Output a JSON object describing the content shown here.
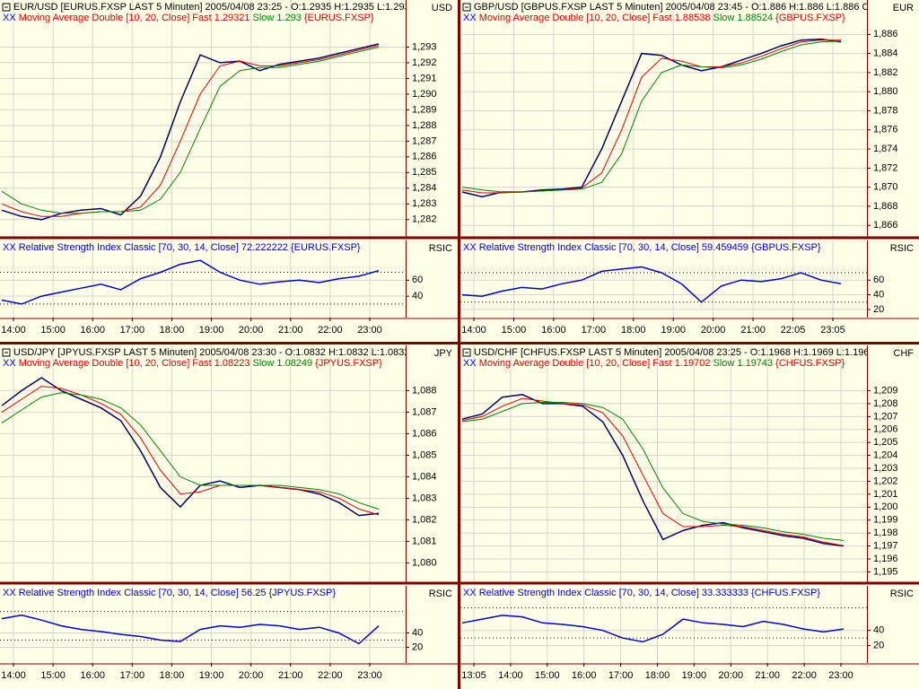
{
  "chart_data": [
    {
      "type": "line",
      "title": "EUR/USD [EURUS.FXSP LAST 5 Minuten] 2005/04/08 23:25 - O:1.2935 H:1.2935 L:1.293",
      "prefix": "XX",
      "indicator": "Moving Average Double [10, 20, Close]",
      "symbol": "{EURUS.FXSP}",
      "axis_label": "USD",
      "ylim": [
        1.2809,
        1.296
      ],
      "yticks": [
        {
          "value": 1.282,
          "label": "1,282"
        },
        {
          "value": 1.283,
          "label": "1,283"
        },
        {
          "value": 1.284,
          "label": "1,284"
        },
        {
          "value": 1.285,
          "label": "1,285"
        },
        {
          "value": 1.286,
          "label": "1,286"
        },
        {
          "value": 1.287,
          "label": "1,287"
        },
        {
          "value": 1.288,
          "label": "1,288"
        },
        {
          "value": 1.289,
          "label": "1,289"
        },
        {
          "value": 1.29,
          "label": "1,290"
        },
        {
          "value": 1.291,
          "label": "1,291"
        },
        {
          "value": 1.292,
          "label": "1,292"
        },
        {
          "value": 1.293,
          "label": "1,293"
        }
      ],
      "series": [
        {
          "color": "#000060",
          "values": [
            1.2826,
            1.2822,
            1.282,
            1.2824,
            1.2826,
            1.2827,
            1.2823,
            1.2835,
            1.286,
            1.2895,
            1.2925,
            1.292,
            1.2921,
            1.2915,
            1.2919,
            1.2921,
            1.2923,
            1.2926,
            1.2929,
            1.2932
          ]
        },
        {
          "name": "Fast 1.29321",
          "color": "#dd0000",
          "values": [
            1.283,
            1.2825,
            1.2822,
            1.2822,
            1.2824,
            1.2825,
            1.2825,
            1.2828,
            1.2842,
            1.287,
            1.29,
            1.2918,
            1.2921,
            1.2918,
            1.2918,
            1.292,
            1.2922,
            1.2925,
            1.2928,
            1.2931
          ]
        },
        {
          "name": "Slow 1.293",
          "color": "#008000",
          "values": [
            1.2838,
            1.283,
            1.2826,
            1.2824,
            1.2824,
            1.2825,
            1.2825,
            1.2826,
            1.2833,
            1.285,
            1.2878,
            1.2905,
            1.2915,
            1.2917,
            1.2917,
            1.2919,
            1.2921,
            1.2924,
            1.2927,
            1.293
          ]
        }
      ]
    },
    {
      "type": "line",
      "prefix": "XX",
      "indicator": "Relative Strength Index Classic [70, 30, 14, Close] 72.222222",
      "symbol": "{EURUS.FXSP}",
      "axis_label": "RSIC",
      "ylim": [
        13,
        110
      ],
      "yticks": [
        40,
        60
      ],
      "levels": [
        70,
        30
      ],
      "xticks": [
        "14:00",
        "15:00",
        "16:00",
        "17:00",
        "18:00",
        "19:00",
        "20:00",
        "21:00",
        "22:00",
        "23:00"
      ],
      "series": [
        {
          "color": "#0000cc",
          "values": [
            35,
            30,
            40,
            45,
            50,
            55,
            48,
            62,
            70,
            80,
            85,
            70,
            60,
            55,
            58,
            60,
            57,
            62,
            65,
            72
          ]
        }
      ]
    },
    {
      "type": "line",
      "title": "GBP/USD [GBPUS.FXSP LAST 5 Minuten] 2005/04/08 23:45 - O:1.886 H:1.886 L:1.886 C",
      "prefix": "XX",
      "indicator": "Moving Average Double [10, 20, Close]",
      "symbol": "{GBPUS.FXSP}",
      "axis_label": "EUR",
      "ylim": [
        1.8648,
        1.8896
      ],
      "yticks": [
        {
          "value": 1.866,
          "label": "1,866"
        },
        {
          "value": 1.868,
          "label": "1,868"
        },
        {
          "value": 1.87,
          "label": "1,870"
        },
        {
          "value": 1.872,
          "label": "1,872"
        },
        {
          "value": 1.874,
          "label": "1,874"
        },
        {
          "value": 1.876,
          "label": "1,876"
        },
        {
          "value": 1.878,
          "label": "1,878"
        },
        {
          "value": 1.88,
          "label": "1,880"
        },
        {
          "value": 1.882,
          "label": "1,882"
        },
        {
          "value": 1.884,
          "label": "1,884"
        },
        {
          "value": 1.886,
          "label": "1,886"
        }
      ],
      "series": [
        {
          "color": "#000060",
          "values": [
            1.8695,
            1.869,
            1.8695,
            1.8695,
            1.8697,
            1.8698,
            1.87,
            1.874,
            1.879,
            1.884,
            1.8838,
            1.8828,
            1.8822,
            1.8826,
            1.8833,
            1.884,
            1.8848,
            1.8854,
            1.8855,
            1.8852
          ]
        },
        {
          "name": "Fast 1.88538",
          "color": "#dd0000",
          "values": [
            1.8697,
            1.8694,
            1.8694,
            1.8695,
            1.8696,
            1.8697,
            1.8699,
            1.8715,
            1.876,
            1.8815,
            1.8835,
            1.8832,
            1.8826,
            1.8826,
            1.883,
            1.8837,
            1.8845,
            1.8852,
            1.8854,
            1.8854
          ]
        },
        {
          "name": "Slow 1.88524",
          "color": "#008000",
          "values": [
            1.87,
            1.8697,
            1.8695,
            1.8695,
            1.8696,
            1.8697,
            1.8698,
            1.8705,
            1.8735,
            1.879,
            1.882,
            1.8828,
            1.8826,
            1.8825,
            1.8828,
            1.8834,
            1.8842,
            1.8849,
            1.8852,
            1.8853
          ]
        }
      ]
    },
    {
      "type": "line",
      "prefix": "XX",
      "indicator": "Relative Strength Index Classic [70, 30, 14, Close] 59.459459",
      "symbol": "{GBPUS.FXSP}",
      "axis_label": "RSIC",
      "ylim": [
        9,
        114
      ],
      "yticks": [
        20,
        40,
        60
      ],
      "levels": [
        70,
        30
      ],
      "xticks": [
        "14:00",
        "15:00",
        "16:00",
        "17:00",
        "18:00",
        "19:00",
        "20:00",
        "21:00",
        "22:05",
        "23:05"
      ],
      "series": [
        {
          "color": "#0000cc",
          "values": [
            40,
            38,
            45,
            50,
            48,
            55,
            60,
            72,
            75,
            78,
            70,
            55,
            30,
            52,
            60,
            58,
            62,
            70,
            60,
            55
          ]
        }
      ]
    },
    {
      "type": "line",
      "title": "USD/JPY [JPYUS.FXSP LAST 5 Minuten] 2005/04/08 23:30 - O:1.0832 H:1.0832 L:1.0832",
      "prefix": "XX",
      "indicator": "Moving Average Double [10, 20, Close]",
      "symbol": "{JPYUS.FXSP}",
      "axis_label": "JPY",
      "ylim": [
        1.0791,
        1.0901
      ],
      "yticks": [
        {
          "value": 1.08,
          "label": "1,080"
        },
        {
          "value": 1.081,
          "label": "1,081"
        },
        {
          "value": 1.082,
          "label": "1,082"
        },
        {
          "value": 1.083,
          "label": "1,083"
        },
        {
          "value": 1.084,
          "label": "1,084"
        },
        {
          "value": 1.085,
          "label": "1,085"
        },
        {
          "value": 1.086,
          "label": "1,086"
        },
        {
          "value": 1.087,
          "label": "1,087"
        },
        {
          "value": 1.088,
          "label": "1,088"
        }
      ],
      "series": [
        {
          "color": "#000060",
          "values": [
            1.0873,
            1.088,
            1.0886,
            1.088,
            1.0876,
            1.0872,
            1.0866,
            1.0852,
            1.0835,
            1.0826,
            1.0836,
            1.0838,
            1.0835,
            1.0836,
            1.0835,
            1.0834,
            1.0832,
            1.0828,
            1.0822,
            1.0823
          ]
        },
        {
          "name": "Fast 1.08223",
          "color": "#dd0000",
          "values": [
            1.087,
            1.0876,
            1.0882,
            1.0881,
            1.0878,
            1.0874,
            1.0869,
            1.0858,
            1.0843,
            1.0832,
            1.0833,
            1.0836,
            1.0836,
            1.0836,
            1.0835,
            1.0834,
            1.0833,
            1.083,
            1.0825,
            1.08223
          ]
        },
        {
          "name": "Slow 1.08249",
          "color": "#008000",
          "values": [
            1.0865,
            1.0871,
            1.0877,
            1.0879,
            1.0878,
            1.0876,
            1.0872,
            1.0864,
            1.0852,
            1.084,
            1.0836,
            1.0836,
            1.0836,
            1.0836,
            1.0836,
            1.0835,
            1.0834,
            1.0832,
            1.0828,
            1.08249
          ]
        }
      ]
    },
    {
      "type": "line",
      "prefix": "XX",
      "indicator": "Relative Strength Index Classic [70, 30, 14, Close] 56.25",
      "symbol": "{JPYUS.FXSP}",
      "axis_label": "RSIC",
      "ylim": [
        -2,
        106
      ],
      "yticks": [
        20,
        40
      ],
      "levels": [
        70,
        30
      ],
      "xticks": [
        "14:00",
        "15:00",
        "16:00",
        "17:00",
        "18:00",
        "19:00",
        "20:00",
        "21:00",
        "22:00",
        "23:00"
      ],
      "series": [
        {
          "color": "#0000cc",
          "values": [
            60,
            65,
            58,
            50,
            45,
            42,
            38,
            35,
            30,
            28,
            45,
            50,
            48,
            52,
            50,
            45,
            48,
            40,
            25,
            50
          ]
        }
      ]
    },
    {
      "type": "line",
      "title": "USD/CHF [CHFUS.FXSP LAST 5 Minuten] 2005/04/08 23:25 - O:1.1968 H:1.1969 L:1.196",
      "prefix": "XX",
      "indicator": "Moving Average Double [10, 20, Close]",
      "symbol": "{CHFUS.FXSP}",
      "axis_label": "CHF",
      "ylim": [
        1.1942,
        1.2125
      ],
      "yticks": [
        {
          "value": 1.195,
          "label": "1,195"
        },
        {
          "value": 1.196,
          "label": "1,196"
        },
        {
          "value": 1.197,
          "label": "1,197"
        },
        {
          "value": 1.198,
          "label": "1,198"
        },
        {
          "value": 1.199,
          "label": "1,199"
        },
        {
          "value": 1.2,
          "label": "1,200"
        },
        {
          "value": 1.201,
          "label": "1,201"
        },
        {
          "value": 1.202,
          "label": "1,202"
        },
        {
          "value": 1.203,
          "label": "1,203"
        },
        {
          "value": 1.204,
          "label": "1,204"
        },
        {
          "value": 1.205,
          "label": "1,205"
        },
        {
          "value": 1.206,
          "label": "1,206"
        },
        {
          "value": 1.207,
          "label": "1,207"
        },
        {
          "value": 1.208,
          "label": "1,208"
        },
        {
          "value": 1.209,
          "label": "1,209"
        }
      ],
      "series": [
        {
          "color": "#000060",
          "values": [
            1.2068,
            1.2072,
            1.2085,
            1.2087,
            1.208,
            1.208,
            1.2078,
            1.2066,
            1.204,
            1.2005,
            1.1975,
            1.1982,
            1.1986,
            1.1988,
            1.1984,
            1.1981,
            1.1978,
            1.1976,
            1.1972,
            1.197
          ]
        },
        {
          "name": "Fast 1.19702",
          "color": "#dd0000",
          "values": [
            1.2067,
            1.207,
            1.2078,
            1.2084,
            1.2082,
            1.208,
            1.2079,
            1.2073,
            1.2055,
            1.2025,
            1.1995,
            1.1985,
            1.1985,
            1.1986,
            1.1985,
            1.1982,
            1.1979,
            1.1977,
            1.1973,
            1.19702
          ]
        },
        {
          "name": "Slow 1.19743",
          "color": "#008000",
          "values": [
            1.2066,
            1.2068,
            1.2074,
            1.208,
            1.2081,
            1.2081,
            1.208,
            1.2077,
            1.2068,
            1.2045,
            1.2015,
            1.1995,
            1.1989,
            1.1987,
            1.1986,
            1.1984,
            1.1981,
            1.1979,
            1.1976,
            1.19743
          ]
        }
      ]
    },
    {
      "type": "line",
      "prefix": "XX",
      "indicator": "Relative Strength Index Classic [70, 30, 14, Close] 33.333333",
      "symbol": "{CHFUS.FXSP}",
      "axis_label": "RSIC",
      "ylim": [
        -3,
        99
      ],
      "yticks": [
        20,
        40
      ],
      "levels": [
        70,
        30
      ],
      "xticks": [
        "13:05",
        "14:00",
        "15:00",
        "16:00",
        "17:00",
        "18:00",
        "19:00",
        "20:00",
        "21:00",
        "22:00",
        "23:00"
      ],
      "series": [
        {
          "color": "#0000cc",
          "values": [
            50,
            55,
            60,
            58,
            50,
            48,
            45,
            40,
            30,
            25,
            35,
            55,
            50,
            48,
            45,
            52,
            48,
            42,
            38,
            42
          ]
        }
      ]
    }
  ]
}
